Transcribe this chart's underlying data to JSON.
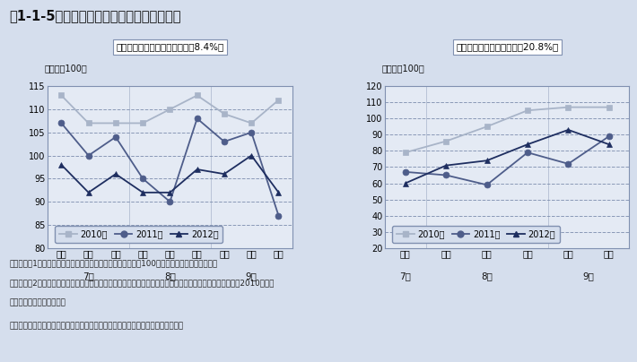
{
  "title": "図1-1-5　福島県産農作物の価格指数の推移",
  "bg_color": "#d5deed",
  "plot_bg_color": "#e4eaf4",
  "left_subtitle": "福島県産きゅうり（全国シェア8.4%）",
  "right_subtitle": "福島県産もも（全国シェア20.8%）",
  "left_ylabel": "（全国＝100）",
  "right_ylabel": "（全国＝100）",
  "left": {
    "ylim": [
      80,
      115
    ],
    "yticks": [
      80,
      85,
      90,
      95,
      100,
      105,
      110,
      115
    ],
    "xticklabels": [
      "上旬",
      "中旬",
      "下旬",
      "上旬",
      "中旬",
      "下旬",
      "上旬",
      "中旬",
      "下旬"
    ],
    "month_labels": [
      "7月",
      "8月",
      "9月"
    ],
    "month_centers": [
      1,
      4,
      7
    ],
    "dividers": [
      2.5,
      5.5
    ],
    "xlim": [
      -0.5,
      8.5
    ],
    "series_2010": [
      113,
      107,
      107,
      107,
      110,
      113,
      109,
      107,
      112
    ],
    "series_2011": [
      107,
      100,
      104,
      95,
      90,
      108,
      103,
      105,
      87
    ],
    "series_2012": [
      98,
      92,
      96,
      92,
      92,
      97,
      96,
      100,
      92
    ]
  },
  "right": {
    "ylim": [
      20,
      120
    ],
    "yticks": [
      20,
      30,
      40,
      50,
      60,
      70,
      80,
      90,
      100,
      110,
      120
    ],
    "xticklabels": [
      "下旬",
      "上旬",
      "中旬",
      "下旬",
      "上旬",
      "中旬"
    ],
    "month_labels": [
      "7月",
      "8月",
      "9月"
    ],
    "month_centers": [
      0,
      2,
      4.5
    ],
    "dividers": [
      0.5,
      3.5
    ],
    "xlim": [
      -0.5,
      5.5
    ],
    "series_2010": [
      79,
      86,
      95,
      105,
      107,
      107
    ],
    "series_2011": [
      67,
      65,
      59,
      79,
      72,
      89
    ],
    "series_2012": [
      60,
      71,
      74,
      84,
      93,
      84
    ]
  },
  "color_2010": "#a8b4c8",
  "color_2011": "#4e5d8a",
  "color_2012": "#1e2e60",
  "marker_2010": "s",
  "marker_2011": "o",
  "marker_2012": "^",
  "markersize": 5,
  "linewidth": 1.3,
  "grid_color": "#8090b0",
  "grid_linestyle": "--",
  "spine_color": "#8090b0",
  "years": [
    "2010年",
    "2011年",
    "2012年"
  ],
  "note1": "（備考）　1．東京築地市場における全産地の加重平均価格を100とした時の福島県産の価格。",
  "note2": "　　　　　2．全国シェアは全国の収穫量に対する福島県の収穫量が占める割合。農林水産省「作況調査」（2010年産）",
  "note3": "　　　　　　　より作成。",
  "source": "資料：農林水産省「青果物卸売市場調査（旬別結果）（産地別）」より環境省作成"
}
